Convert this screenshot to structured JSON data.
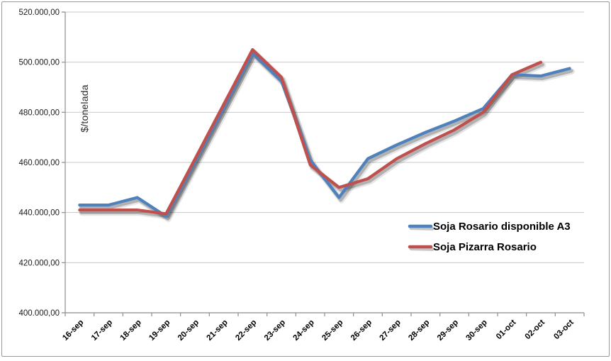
{
  "chart_data": {
    "type": "line",
    "title": "",
    "xlabel": "",
    "ylabel": "$/tonelada",
    "grid": "horizontal",
    "legend_position": "inside-right-middle",
    "categories": [
      "16-sep",
      "17-sep",
      "18-sep",
      "19-sep",
      "20-sep",
      "21-sep",
      "22-sep",
      "23-sep",
      "24-sep",
      "25-sep",
      "26-sep",
      "27-sep",
      "28-sep",
      "29-sep",
      "30-sep",
      "01-oct",
      "02-oct",
      "03-oct"
    ],
    "series": [
      {
        "name": "Soja Rosario disponible A3",
        "color": "#4F81BD",
        "values": [
          443000,
          443000,
          446000,
          438500,
          460200,
          481800,
          503500,
          492500,
          461000,
          446000,
          461500,
          467000,
          472000,
          476500,
          481500,
          495000,
          494500,
          497500
        ]
      },
      {
        "name": "Soja Pizarra Rosario",
        "color": "#C0504D",
        "values": [
          441000,
          441000,
          441000,
          439500,
          461300,
          483200,
          505000,
          494000,
          459000,
          450000,
          453500,
          461500,
          467500,
          473000,
          480000,
          495000,
          500000,
          null
        ]
      }
    ],
    "ylim": [
      400000,
      520000
    ],
    "ytick_step": 20000,
    "y_ticks": [
      {
        "value": 520000,
        "label": "520.000,00"
      },
      {
        "value": 500000,
        "label": "500.000,00"
      },
      {
        "value": 480000,
        "label": "480.000,00"
      },
      {
        "value": 460000,
        "label": "460.000,00"
      },
      {
        "value": 440000,
        "label": "440.000,00"
      },
      {
        "value": 420000,
        "label": "420.000,00"
      },
      {
        "value": 400000,
        "label": "400.000,00"
      }
    ],
    "axis_color": "#8c8c8c",
    "gridline_color": "#c8c8c8",
    "label_color": "#1a1a1a"
  }
}
